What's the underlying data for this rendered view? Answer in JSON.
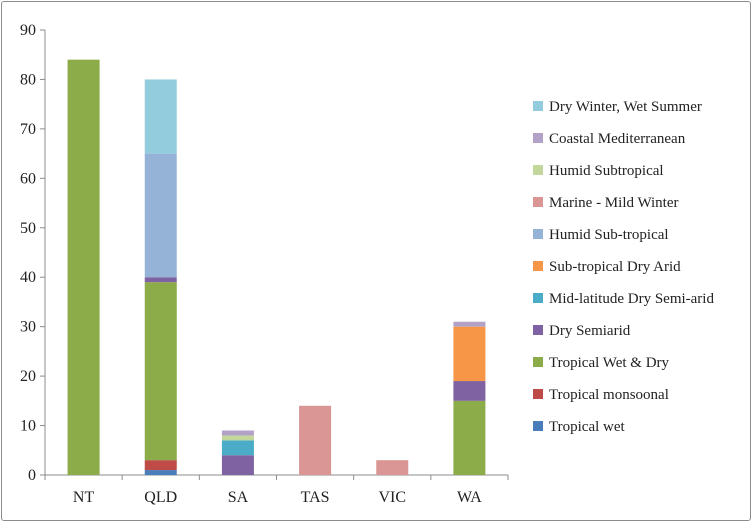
{
  "chart_data": {
    "type": "bar",
    "stacked": true,
    "title": "",
    "xlabel": "",
    "ylabel": "",
    "ylim": [
      0,
      90
    ],
    "yticks": [
      0,
      10,
      20,
      30,
      40,
      50,
      60,
      70,
      80,
      90
    ],
    "grid": false,
    "legend_position": "right",
    "categories": [
      "NT",
      "QLD",
      "SA",
      "TAS",
      "VIC",
      "WA"
    ],
    "series": [
      {
        "name": "Tropical wet",
        "color": "#4a7ebb",
        "values": [
          0,
          1,
          0,
          0,
          0,
          0
        ]
      },
      {
        "name": "Tropical monsoonal",
        "color": "#be4b48",
        "values": [
          0,
          2,
          0,
          0,
          0,
          0
        ]
      },
      {
        "name": "Tropical Wet & Dry",
        "color": "#8cac49",
        "values": [
          84,
          36,
          0,
          0,
          0,
          15
        ]
      },
      {
        "name": "Dry Semiarid",
        "color": "#7e62a1",
        "values": [
          0,
          1,
          4,
          0,
          0,
          4
        ]
      },
      {
        "name": "Mid-latitude Dry Semi-arid",
        "color": "#4aacc6",
        "values": [
          0,
          0,
          3,
          0,
          0,
          0
        ]
      },
      {
        "name": "Sub-tropical Dry Arid",
        "color": "#f79646",
        "values": [
          0,
          0,
          0,
          0,
          0,
          11
        ]
      },
      {
        "name": "Humid Sub-tropical",
        "color": "#95b3d7",
        "values": [
          0,
          25,
          0,
          0,
          0,
          0
        ]
      },
      {
        "name": "Marine - Mild Winter",
        "color": "#d99694",
        "values": [
          0,
          0,
          0,
          14,
          3,
          0
        ]
      },
      {
        "name": "Humid Subtropical",
        "color": "#c3d69b",
        "values": [
          0,
          0,
          1,
          0,
          0,
          0
        ]
      },
      {
        "name": "Coastal Mediterranean",
        "color": "#b3a2c7",
        "values": [
          0,
          0,
          1,
          0,
          0,
          1
        ]
      },
      {
        "name": "Dry Winter, Wet Summer",
        "color": "#93cddd",
        "values": [
          0,
          15,
          0,
          0,
          0,
          0
        ]
      }
    ]
  }
}
